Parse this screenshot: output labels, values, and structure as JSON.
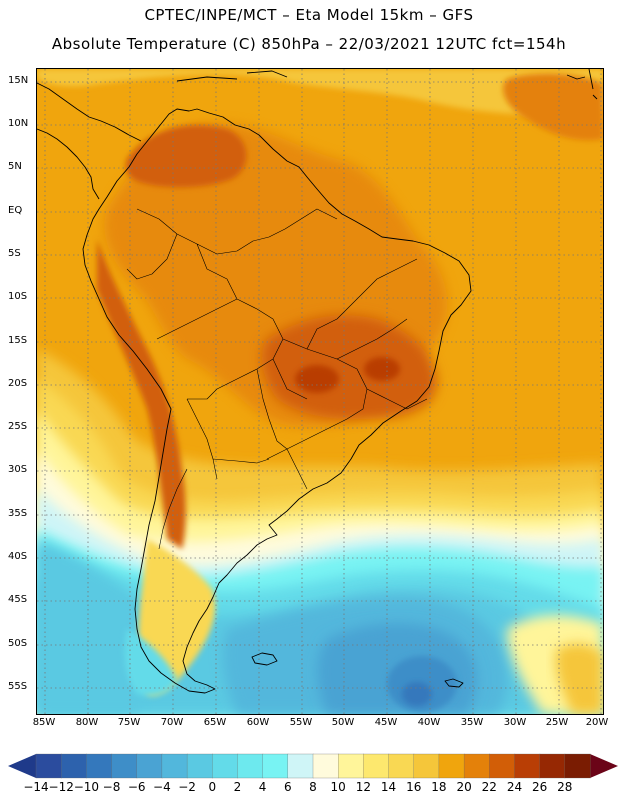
{
  "header": {
    "title_line1": "CPTEC/INPE/MCT –  Eta Model 15km – GFS",
    "title_line2": "Absolute Temperature (C) 850hPa – 22/03/2021 12UTC fct=154h"
  },
  "map": {
    "lat_labels": [
      "15N",
      "10N",
      "5N",
      "EQ",
      "5S",
      "10S",
      "15S",
      "20S",
      "25S",
      "30S",
      "35S",
      "40S",
      "45S",
      "50S",
      "55S"
    ],
    "lon_labels": [
      "85W",
      "80W",
      "75W",
      "70W",
      "65W",
      "60W",
      "55W",
      "50W",
      "45W",
      "40W",
      "35W",
      "30W",
      "25W",
      "20W"
    ]
  },
  "colorbar": {
    "labels": [
      "-14",
      "-12",
      "-10",
      "-8",
      "-6",
      "-4",
      "-2",
      "0",
      "2",
      "4",
      "6",
      "8",
      "10",
      "12",
      "14",
      "16",
      "18",
      "20",
      "22",
      "24",
      "26",
      "28"
    ],
    "colors": [
      "#2b4c9e",
      "#2d62ad",
      "#3478bc",
      "#3e8ec8",
      "#4aa3d3",
      "#52b7dc",
      "#5ac9e2",
      "#63dbe9",
      "#6de9ee",
      "#78f3f3",
      "#cff5f7",
      "#fffbdc",
      "#fff59a",
      "#fde86e",
      "#f9d853",
      "#f5c63a",
      "#f0a50d",
      "#e4810a",
      "#d25e07",
      "#b93e05",
      "#962803",
      "#7a1c02"
    ],
    "low_color": "#1f3a8a",
    "high_color": "#6b0418"
  }
}
